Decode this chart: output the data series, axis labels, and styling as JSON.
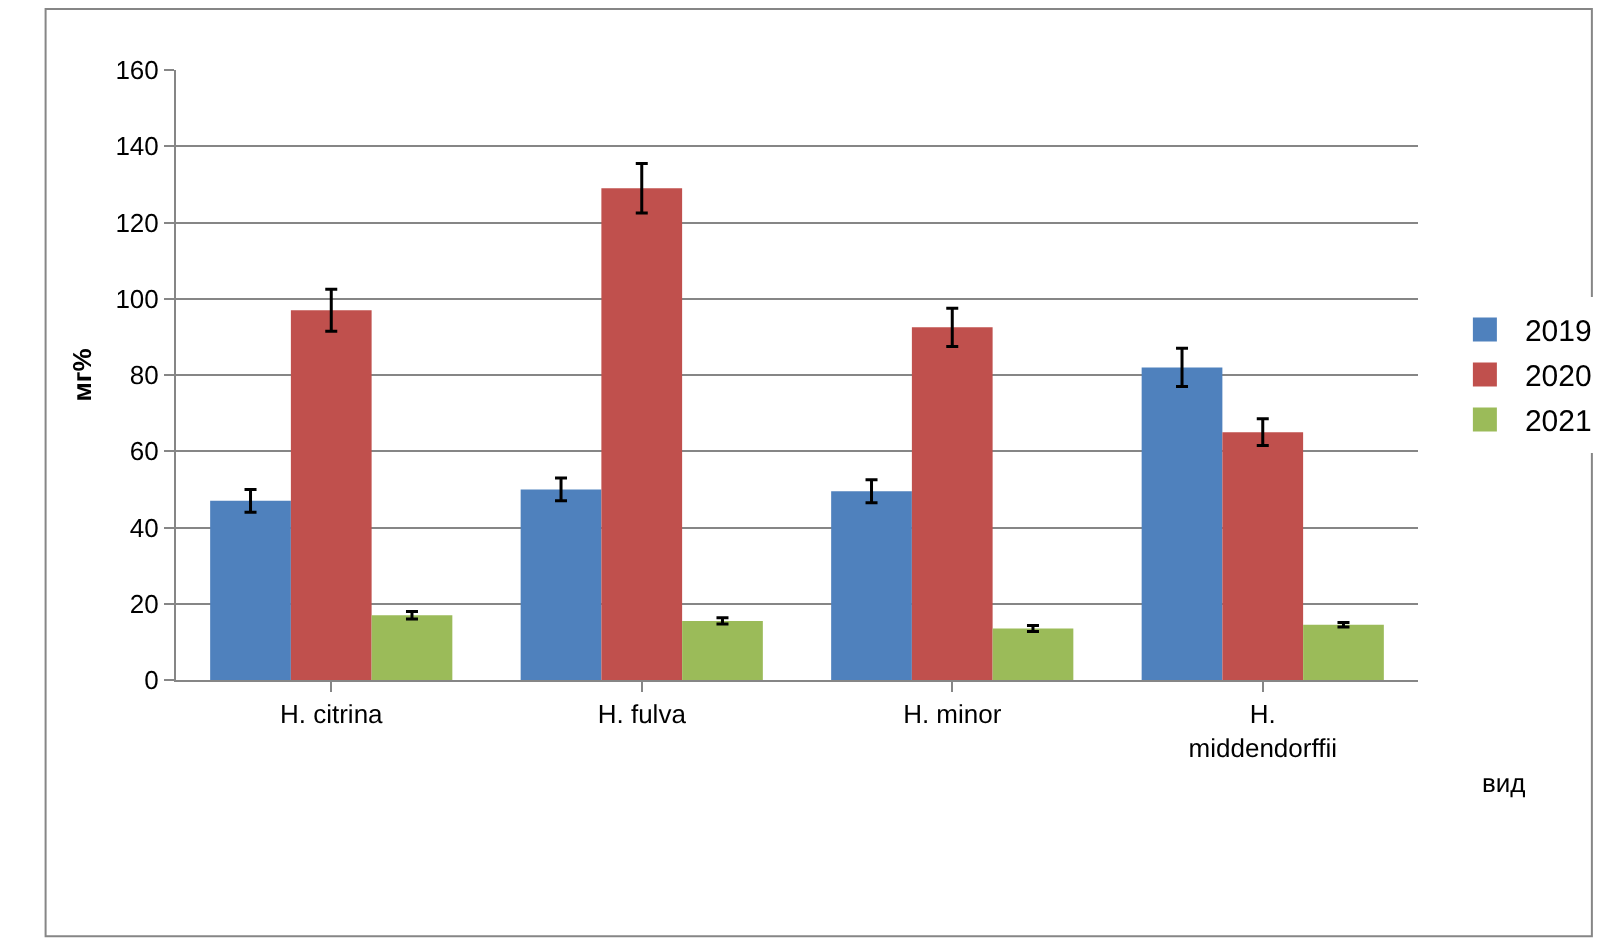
{
  "chart_data": {
    "type": "bar",
    "ylabel": "мг%",
    "xlabel": "вид",
    "categories": [
      "H. citrina",
      "H. fulva",
      "H. minor",
      "H.\nmiddendorffii"
    ],
    "series": [
      {
        "name": "2019",
        "color": "#4f81bd",
        "values": [
          47,
          50,
          49.5,
          82
        ],
        "errors": [
          3,
          3,
          3,
          5
        ]
      },
      {
        "name": "2020",
        "color": "#c0504d",
        "values": [
          97,
          129,
          92.5,
          65
        ],
        "errors": [
          5.5,
          6.5,
          5,
          3.5
        ]
      },
      {
        "name": "2021",
        "color": "#9bbb59",
        "values": [
          17,
          15.5,
          13.5,
          14.5
        ],
        "errors": [
          1,
          0.8,
          0.8,
          0.6
        ]
      }
    ],
    "ylim": [
      0,
      160
    ],
    "yticks": [
      0,
      20,
      40,
      60,
      80,
      100,
      120,
      140,
      160
    ],
    "grid": "y",
    "legend": "right"
  }
}
